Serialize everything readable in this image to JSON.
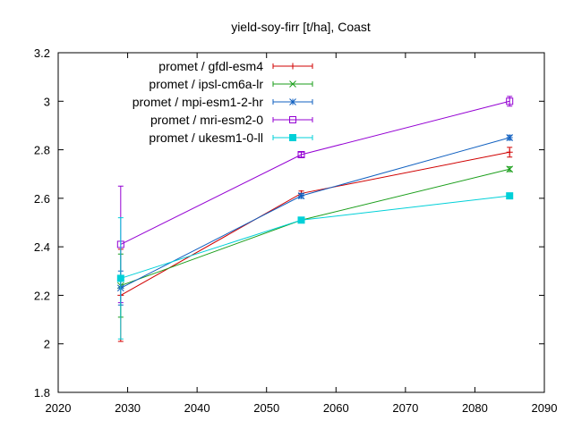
{
  "chart_data": {
    "type": "line",
    "title": "yield-soy-firr [t/ha], Coast",
    "xlabel": "",
    "ylabel": "",
    "xlim": [
      2020,
      2090
    ],
    "ylim": [
      1.8,
      3.2
    ],
    "x_ticks": [
      2020,
      2030,
      2040,
      2050,
      2060,
      2070,
      2080,
      2090
    ],
    "y_ticks": [
      1.8,
      2.0,
      2.2,
      2.4,
      2.6,
      2.8,
      3.0,
      3.2
    ],
    "x_tick_labels": [
      "2020",
      "2030",
      "2040",
      "2050",
      "2060",
      "2070",
      "2080",
      "2090"
    ],
    "y_tick_labels": [
      "1.8",
      "2",
      "2.2",
      "2.4",
      "2.6",
      "2.8",
      "3",
      "3.2"
    ],
    "grid": false,
    "legend_position": "top-left",
    "x": [
      2029,
      2055,
      2085
    ],
    "series": [
      {
        "name": "promet / gfdl-esm4",
        "color": "#d00000",
        "marker": "plus",
        "values": [
          2.2,
          2.62,
          2.79
        ],
        "errors": [
          0.19,
          0.01,
          0.02
        ]
      },
      {
        "name": "promet / ipsl-cm6a-lr",
        "color": "#1a9e1a",
        "marker": "x",
        "values": [
          2.24,
          2.51,
          2.72
        ],
        "errors": [
          0.13,
          0.01,
          0.01
        ]
      },
      {
        "name": "promet / mpi-esm1-2-hr",
        "color": "#1060c0",
        "marker": "star",
        "values": [
          2.23,
          2.61,
          2.85
        ],
        "errors": [
          0.07,
          0.01,
          0.01
        ]
      },
      {
        "name": "promet / mri-esm2-0",
        "color": "#9400d3",
        "marker": "square-open",
        "values": [
          2.41,
          2.78,
          3.0
        ],
        "errors": [
          0.24,
          0.01,
          0.02
        ]
      },
      {
        "name": "promet / ukesm1-0-ll",
        "color": "#00d0d8",
        "marker": "square-filled",
        "values": [
          2.27,
          2.51,
          2.61
        ],
        "errors": [
          0.25,
          0.01,
          0.01
        ]
      }
    ]
  }
}
